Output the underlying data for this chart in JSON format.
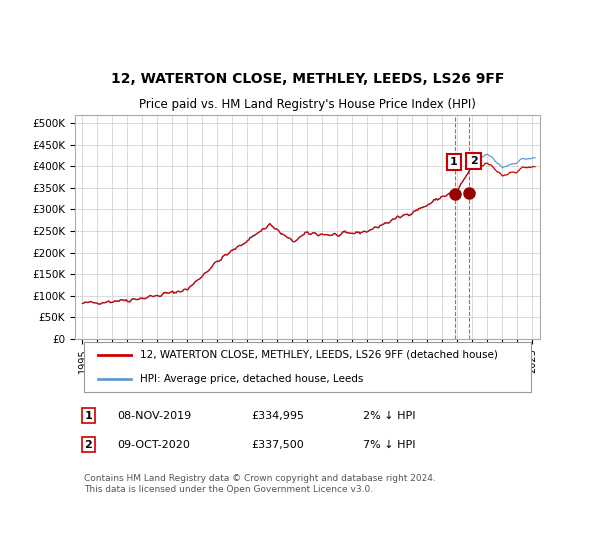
{
  "title": "12, WATERTON CLOSE, METHLEY, LEEDS, LS26 9FF",
  "subtitle": "Price paid vs. HM Land Registry's House Price Index (HPI)",
  "legend_line1": "12, WATERTON CLOSE, METHLEY, LEEDS, LS26 9FF (detached house)",
  "legend_line2": "HPI: Average price, detached house, Leeds",
  "annotation1_date": "08-NOV-2019",
  "annotation1_price": "£334,995",
  "annotation1_hpi": "2% ↓ HPI",
  "annotation2_date": "09-OCT-2020",
  "annotation2_price": "£337,500",
  "annotation2_hpi": "7% ↓ HPI",
  "footer": "Contains HM Land Registry data © Crown copyright and database right 2024.\nThis data is licensed under the Open Government Licence v3.0.",
  "red_line_color": "#cc0000",
  "blue_line_color": "#6699cc",
  "marker_color": "#990000",
  "vline_color": "#ff4444",
  "point1_x": 2019.85,
  "point1_y": 334995,
  "point2_x": 2020.77,
  "point2_y": 337500,
  "ylim": [
    0,
    520000
  ],
  "xlim": [
    1994.5,
    2025.5
  ]
}
